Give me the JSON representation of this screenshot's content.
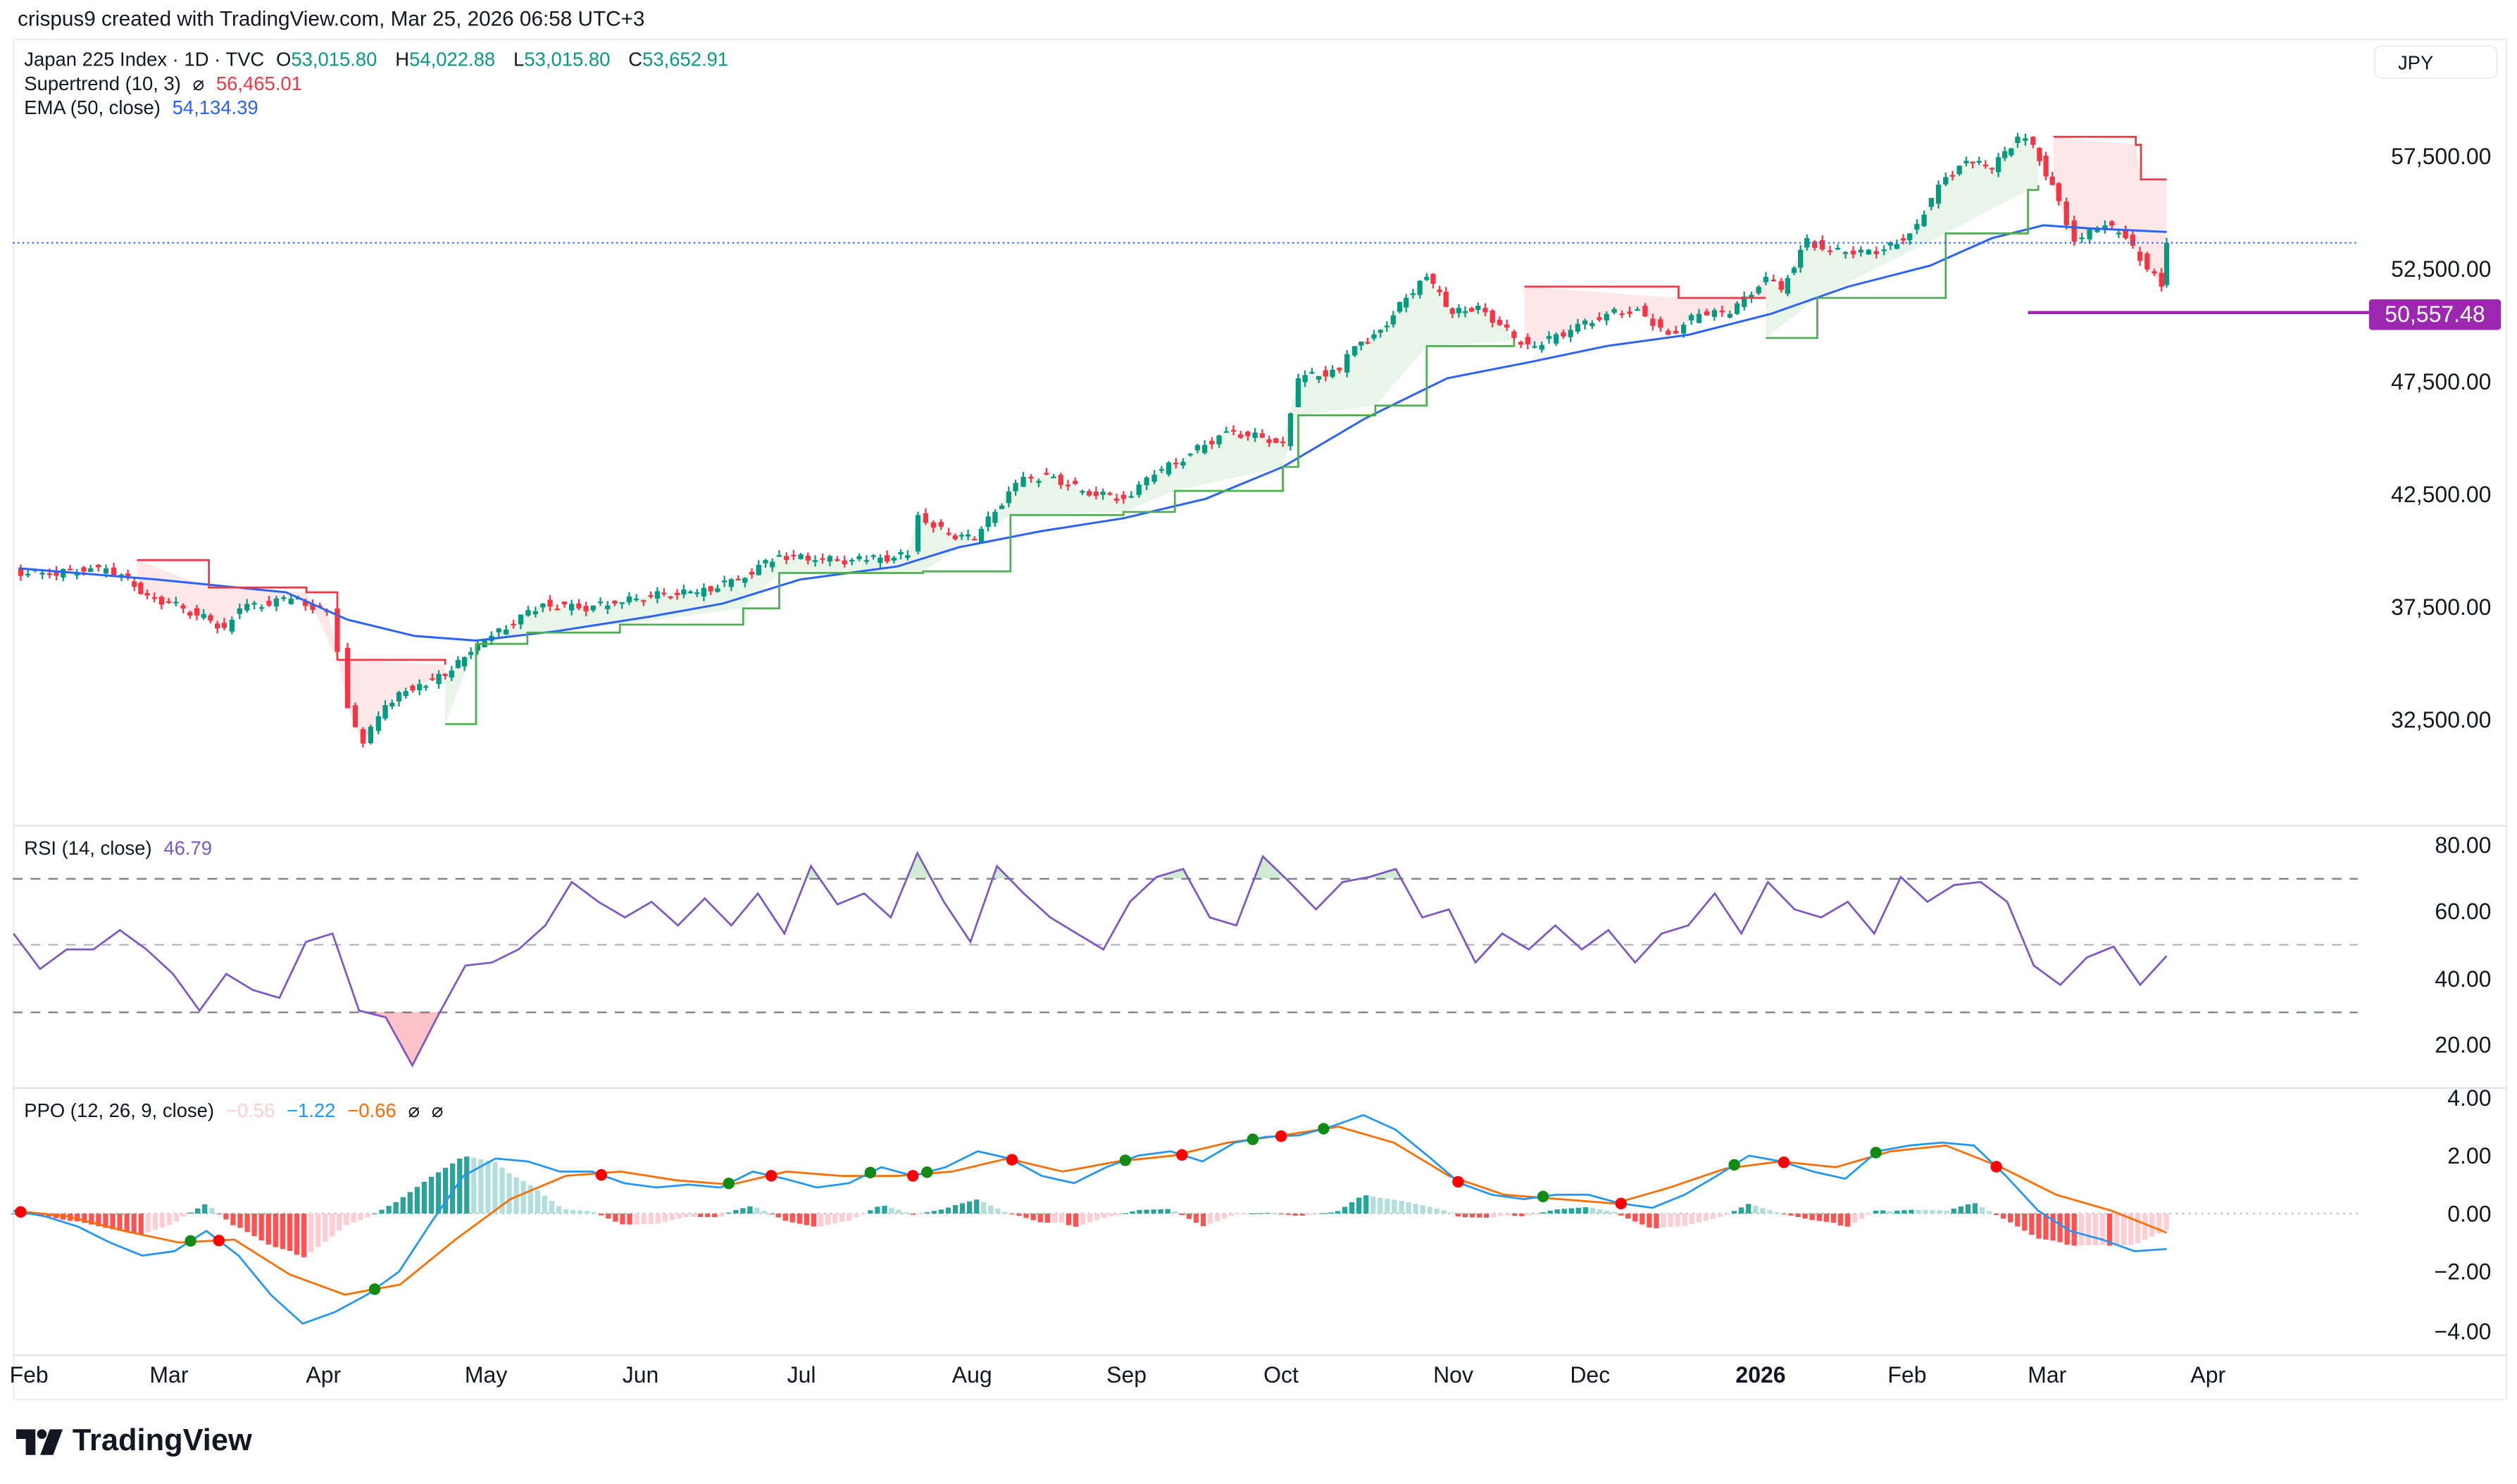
{
  "caption": "crispus9 created with TradingView.com, Mar 25, 2026 06:58 UTC+3",
  "legend": {
    "symbol": "Japan 225 Index · 1D · TVC",
    "open_label": "O",
    "open": "53,015.80",
    "high_label": "H",
    "high": "54,022.88",
    "low_label": "L",
    "low": "53,015.80",
    "close_label": "C",
    "close": "53,652.91",
    "supertrend_label": "Supertrend (10, 3)",
    "supertrend_icon": "⌀",
    "supertrend_value": "56,465.01",
    "ema_label": "EMA (50, close)",
    "ema_value": "54,134.39"
  },
  "currency": "JPY",
  "price_axis": [
    "57,500.00",
    "52,500.00",
    "47,500.00",
    "42,500.00",
    "37,500.00",
    "32,500.00"
  ],
  "horizontal_line_label": "50,557.48",
  "rsi": {
    "label": "RSI (14, close)",
    "value": "46.79",
    "axis": [
      "80.00",
      "60.00",
      "40.00",
      "20.00"
    ]
  },
  "ppo": {
    "label": "PPO (12, 26, 9, close)",
    "hist": "−0.56",
    "ppo": "−1.22",
    "signal": "−0.66",
    "icon1": "⌀",
    "icon2": "⌀",
    "axis": [
      "4.00",
      "2.00",
      "0.00",
      "−2.00",
      "−4.00"
    ]
  },
  "time_axis": [
    "Feb",
    "Mar",
    "Apr",
    "May",
    "Jun",
    "Jul",
    "Aug",
    "Sep",
    "Oct",
    "Nov",
    "Dec",
    "2026",
    "Feb",
    "Mar",
    "Apr"
  ],
  "logo": "TradingView",
  "colors": {
    "up": "#089981",
    "down": "#F23645",
    "ema": "#2962FF",
    "supertrend_up": "#4CAF50",
    "supertrend_down": "#F23645",
    "rsi": "#7E57C2",
    "ppo": "#2196F3",
    "signal": "#FF6D00",
    "hline": "#9C27B0"
  },
  "chart_data": [
    {
      "type": "candlestick",
      "title": "Japan 225 Index · 1D · TVC",
      "ylabel": "JPY",
      "ylim": [
        30000,
        59000
      ],
      "last_close": 53652.91,
      "horizontal_line": 50557.48,
      "close": [
        [
          "2025-01-29",
          39070
        ],
        [
          "2025-02-05",
          38930
        ],
        [
          "2025-02-13",
          39210
        ],
        [
          "2025-02-19",
          38930
        ],
        [
          "2025-02-24",
          38000
        ],
        [
          "2025-03-03",
          37430
        ],
        [
          "2025-03-11",
          36570
        ],
        [
          "2025-03-14",
          37430
        ],
        [
          "2025-03-24",
          37860
        ],
        [
          "2025-03-31",
          37290
        ],
        [
          "2025-04-02",
          35500
        ],
        [
          "2025-04-04",
          33000
        ],
        [
          "2025-04-07",
          31430
        ],
        [
          "2025-04-10",
          32640
        ],
        [
          "2025-04-14",
          33710
        ],
        [
          "2025-04-18",
          34070
        ],
        [
          "2025-04-23",
          34430
        ],
        [
          "2025-04-28",
          35500
        ],
        [
          "2025-05-02",
          36210
        ],
        [
          "2025-05-12",
          37640
        ],
        [
          "2025-05-19",
          37430
        ],
        [
          "2025-05-26",
          37640
        ],
        [
          "2025-06-02",
          38000
        ],
        [
          "2025-06-11",
          38140
        ],
        [
          "2025-06-19",
          38710
        ],
        [
          "2025-06-27",
          39790
        ],
        [
          "2025-07-04",
          39570
        ],
        [
          "2025-07-14",
          39570
        ],
        [
          "2025-07-22",
          39790
        ],
        [
          "2025-07-24",
          41570
        ],
        [
          "2025-07-30",
          40710
        ],
        [
          "2025-08-04",
          40500
        ],
        [
          "2025-08-12",
          43000
        ],
        [
          "2025-08-18",
          43360
        ],
        [
          "2025-08-25",
          42640
        ],
        [
          "2025-09-02",
          42290
        ],
        [
          "2025-09-08",
          43360
        ],
        [
          "2025-09-15",
          44290
        ],
        [
          "2025-09-22",
          45290
        ],
        [
          "2025-09-29",
          45000
        ],
        [
          "2025-10-03",
          44790
        ],
        [
          "2025-10-06",
          47640
        ],
        [
          "2025-10-14",
          48000
        ],
        [
          "2025-10-17",
          49070
        ],
        [
          "2025-10-22",
          49790
        ],
        [
          "2025-10-27",
          51210
        ],
        [
          "2025-10-31",
          52140
        ],
        [
          "2025-11-05",
          50500
        ],
        [
          "2025-11-10",
          50860
        ],
        [
          "2025-11-17",
          49430
        ],
        [
          "2025-11-21",
          49070
        ],
        [
          "2025-11-28",
          49790
        ],
        [
          "2025-12-05",
          50500
        ],
        [
          "2025-12-11",
          50710
        ],
        [
          "2025-12-17",
          49570
        ],
        [
          "2025-12-23",
          50500
        ],
        [
          "2025-12-29",
          50500
        ],
        [
          "2026-01-05",
          52140
        ],
        [
          "2026-01-08",
          51570
        ],
        [
          "2026-01-13",
          53860
        ],
        [
          "2026-01-16",
          53360
        ],
        [
          "2026-01-22",
          53140
        ],
        [
          "2026-01-28",
          53360
        ],
        [
          "2026-02-02",
          54070
        ],
        [
          "2026-02-09",
          56570
        ],
        [
          "2026-02-13",
          57290
        ],
        [
          "2026-02-18",
          56930
        ],
        [
          "2026-02-23",
          58360
        ],
        [
          "2026-02-26",
          58000
        ],
        [
          "2026-03-03",
          55500
        ],
        [
          "2026-03-06",
          53710
        ],
        [
          "2026-03-12",
          54430
        ],
        [
          "2026-03-16",
          53860
        ],
        [
          "2026-03-23",
          51710
        ],
        [
          "2026-03-24",
          53652.91
        ]
      ],
      "ema50": [
        [
          "2025-01-30",
          39210
        ],
        [
          "2025-02-26",
          38710
        ],
        [
          "2025-03-23",
          38140
        ],
        [
          "2025-04-04",
          36930
        ],
        [
          "2025-04-17",
          36210
        ],
        [
          "2025-04-29",
          36000
        ],
        [
          "2025-05-15",
          36430
        ],
        [
          "2025-06-02",
          37070
        ],
        [
          "2025-06-16",
          37640
        ],
        [
          "2025-07-01",
          38710
        ],
        [
          "2025-07-20",
          39290
        ],
        [
          "2025-08-01",
          40140
        ],
        [
          "2025-08-17",
          40860
        ],
        [
          "2025-09-02",
          41430
        ],
        [
          "2025-09-18",
          42290
        ],
        [
          "2025-10-03",
          43710
        ],
        [
          "2025-10-19",
          45860
        ],
        [
          "2025-11-04",
          47640
        ],
        [
          "2025-11-20",
          48360
        ],
        [
          "2025-12-05",
          49070
        ],
        [
          "2025-12-21",
          49570
        ],
        [
          "2026-01-06",
          50500
        ],
        [
          "2026-01-21",
          51710
        ],
        [
          "2026-02-06",
          52640
        ],
        [
          "2026-02-18",
          53860
        ],
        [
          "2026-02-28",
          54430
        ],
        [
          "2026-03-09",
          54290
        ],
        [
          "2026-03-24",
          54134.39
        ]
      ],
      "supertrend": [
        {
          "direction": "down",
          "points": [
            [
              "2025-02-22",
              39570
            ],
            [
              "2025-03-08",
              38360
            ],
            [
              "2025-03-27",
              38140
            ],
            [
              "2025-04-02",
              35140
            ],
            [
              "2025-04-23",
              34930
            ]
          ]
        },
        {
          "direction": "up",
          "points": [
            [
              "2025-04-23",
              32290
            ],
            [
              "2025-04-29",
              35860
            ],
            [
              "2025-05-09",
              36360
            ],
            [
              "2025-05-27",
              36710
            ],
            [
              "2025-06-20",
              37430
            ],
            [
              "2025-06-27",
              39000
            ],
            [
              "2025-07-25",
              39070
            ],
            [
              "2025-08-11",
              41570
            ],
            [
              "2025-09-02",
              41710
            ],
            [
              "2025-09-12",
              42640
            ],
            [
              "2025-10-03",
              43710
            ],
            [
              "2025-10-06",
              46000
            ],
            [
              "2025-10-21",
              46430
            ],
            [
              "2025-10-31",
              49070
            ],
            [
              "2025-11-17",
              49290
            ]
          ]
        },
        {
          "direction": "down",
          "points": [
            [
              "2025-11-19",
              51710
            ],
            [
              "2025-12-19",
              51210
            ],
            [
              "2026-01-05",
              51210
            ]
          ]
        },
        {
          "direction": "up",
          "points": [
            [
              "2026-01-05",
              49430
            ],
            [
              "2026-01-15",
              51210
            ],
            [
              "2026-02-09",
              54070
            ],
            [
              "2026-02-25",
              56000
            ],
            [
              "2026-02-27",
              56210
            ]
          ]
        },
        {
          "direction": "down",
          "points": [
            [
              "2026-03-02",
              58360
            ],
            [
              "2026-03-18",
              58000
            ],
            [
              "2026-03-19",
              56465.01
            ],
            [
              "2026-03-24",
              56465.01
            ]
          ]
        }
      ]
    },
    {
      "type": "line",
      "title": "RSI (14, close)",
      "ylim": [
        10,
        85
      ],
      "bands": [
        30,
        50,
        70
      ],
      "start": "2025-01-29",
      "end": "2026-03-24",
      "values": [
        53.5,
        42.9,
        48.7,
        48.7,
        54.5,
        48.7,
        41.4,
        30.4,
        41.4,
        36.6,
        34.2,
        51,
        53.5,
        30.4,
        28.4,
        14,
        29.4,
        43.9,
        44.8,
        48.7,
        55.9,
        68.9,
        63,
        58.3,
        63,
        55.9,
        64,
        55.9,
        65.5,
        53.5,
        73.7,
        62.2,
        65.5,
        58.3,
        77.6,
        63,
        51,
        73.7,
        65.5,
        58.3,
        53.5,
        48.7,
        63,
        70.4,
        72.8,
        58.3,
        55.9,
        76.6,
        68.9,
        60.7,
        68.9,
        70.4,
        72.8,
        58.3,
        60.7,
        44.8,
        53.5,
        48.7,
        55.9,
        48.7,
        54.5,
        44.8,
        53.5,
        55.9,
        65.5,
        53.5,
        68.9,
        60.7,
        58.3,
        63,
        53.5,
        70.4,
        63,
        68,
        68.9,
        63,
        43.9,
        38.1,
        46.3,
        49.6,
        38.1,
        46.79
      ]
    },
    {
      "type": "line+histogram",
      "title": "PPO (12, 26, 9, close)",
      "ylim": [
        -4.5,
        4.3
      ],
      "start": "2025-01-29",
      "end": "2026-03-24",
      "series": [
        {
          "name": "PPO",
          "values": [
            0.1,
            -0.1,
            -0.45,
            -1,
            -1.45,
            -1.3,
            -0.6,
            -1.45,
            -2.8,
            -3.8,
            -3.4,
            -2.8,
            -2,
            -0.3,
            1.3,
            1.9,
            1.8,
            1.45,
            1.45,
            1.05,
            0.9,
            1,
            0.9,
            1.45,
            1.2,
            0.9,
            1.05,
            1.6,
            1.3,
            1.6,
            2.15,
            1.9,
            1.3,
            1.05,
            1.6,
            2,
            2.15,
            1.8,
            2.45,
            2.65,
            2.7,
            3,
            3.4,
            2.9,
            2,
            1.05,
            0.65,
            0.5,
            0.65,
            0.65,
            0.35,
            0.2,
            0.65,
            1.3,
            2,
            1.8,
            1.45,
            1.2,
            2.15,
            2.35,
            2.45,
            2.35,
            1.3,
            0.1,
            -0.6,
            -0.9,
            -1.3,
            -1.22
          ]
        },
        {
          "name": "Signal",
          "values": [
            0.1,
            -0.1,
            -0.6,
            -1,
            -0.9,
            -2.1,
            -2.8,
            -2.45,
            -0.9,
            0.5,
            1.3,
            1.45,
            1.15,
            1,
            1.45,
            1.3,
            1.3,
            1.45,
            1.9,
            1.45,
            1.8,
            2,
            2.45,
            2.7,
            3,
            2.45,
            1.3,
            0.65,
            0.5,
            0.35,
            0.9,
            1.55,
            1.8,
            1.6,
            2.15,
            2.35,
            1.6,
            0.65,
            0.1,
            -0.66
          ]
        }
      ]
    }
  ]
}
